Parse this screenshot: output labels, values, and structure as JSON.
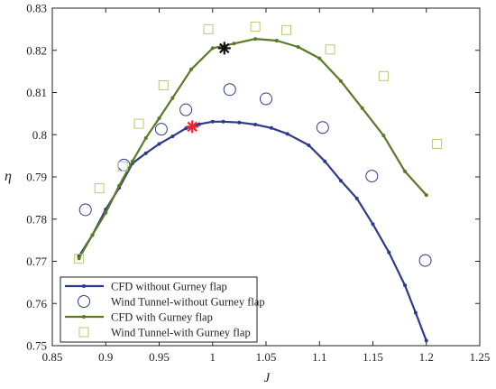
{
  "chart_data": {
    "type": "line",
    "title": "",
    "xlabel": "J",
    "ylabel": "η",
    "xlim": [
      0.85,
      1.25
    ],
    "ylim": [
      0.75,
      0.83
    ],
    "xticks": [
      0.85,
      0.9,
      0.95,
      1,
      1.05,
      1.1,
      1.15,
      1.2,
      1.25
    ],
    "xtick_labels": [
      "0.85",
      "0.9",
      "0.95",
      "1",
      "1.05",
      "1.1",
      "1.15",
      "1.2",
      "1.25"
    ],
    "yticks": [
      0.75,
      0.76,
      0.77,
      0.78,
      0.79,
      0.8,
      0.81,
      0.82,
      0.83
    ],
    "ytick_labels": [
      "0.75",
      "0.76",
      "0.77",
      "0.78",
      "0.79",
      "0.8",
      "0.81",
      "0.82",
      "0.83"
    ],
    "grid": false,
    "legend_position": "bottom-left",
    "series": [
      {
        "name": "CFD without Gurney flap",
        "kind": "line",
        "color": "#2d3a8c",
        "x": [
          0.875,
          0.8875,
          0.9,
          0.9125,
          0.925,
          0.9375,
          0.95,
          0.9625,
          0.975,
          0.9875,
          1.0,
          1.01,
          1.025,
          1.04,
          1.055,
          1.07,
          1.09,
          1.105,
          1.12,
          1.135,
          1.15,
          1.165,
          1.18,
          1.19,
          1.2
        ],
        "y": [
          0.7712,
          0.7762,
          0.7823,
          0.7874,
          0.7932,
          0.7956,
          0.7978,
          0.7996,
          0.8015,
          0.8025,
          0.8031,
          0.8031,
          0.8029,
          0.8024,
          0.8016,
          0.8002,
          0.7975,
          0.7937,
          0.7891,
          0.7849,
          0.7788,
          0.7721,
          0.7643,
          0.7578,
          0.7512
        ]
      },
      {
        "name": "Wind Tunnel-without Gurney flap",
        "kind": "marker",
        "marker": "circle",
        "color": "#2d3a8c",
        "x": [
          0.881,
          0.917,
          0.952,
          0.975,
          1.016,
          1.05,
          1.103,
          1.149,
          1.199
        ],
        "y": [
          0.7822,
          0.7928,
          0.8013,
          0.8059,
          0.8107,
          0.8085,
          0.8017,
          0.7902,
          0.7702
        ]
      },
      {
        "name": "CFD with Gurney flap",
        "kind": "line",
        "color": "#5a7a23",
        "x": [
          0.875,
          0.8875,
          0.9,
          0.9125,
          0.925,
          0.9375,
          0.95,
          0.9625,
          0.98,
          1.0,
          1.02,
          1.04,
          1.06,
          1.08,
          1.1,
          1.12,
          1.14,
          1.16,
          1.18,
          1.2
        ],
        "y": [
          0.7707,
          0.7762,
          0.7815,
          0.7879,
          0.7937,
          0.7992,
          0.8039,
          0.8087,
          0.8155,
          0.8205,
          0.8216,
          0.8227,
          0.8223,
          0.8208,
          0.8181,
          0.8127,
          0.8063,
          0.7998,
          0.7913,
          0.7857
        ]
      },
      {
        "name": "Wind Tunnel-with Gurney flap",
        "kind": "marker",
        "marker": "square",
        "color": "#b5cc6e",
        "x": [
          0.875,
          0.894,
          0.916,
          0.931,
          0.954,
          0.996,
          1.04,
          1.069,
          1.11,
          1.16,
          1.21
        ],
        "y": [
          0.7706,
          0.7873,
          0.7925,
          0.8026,
          0.8117,
          0.825,
          0.8256,
          0.8248,
          0.8202,
          0.8139,
          0.7978
        ]
      }
    ],
    "highlights": [
      {
        "marker": "asterisk",
        "color": "#e8262b",
        "x": 0.981,
        "y": 0.8019
      },
      {
        "marker": "asterisk",
        "color": "#111111",
        "x": 1.011,
        "y": 0.8205
      }
    ]
  }
}
